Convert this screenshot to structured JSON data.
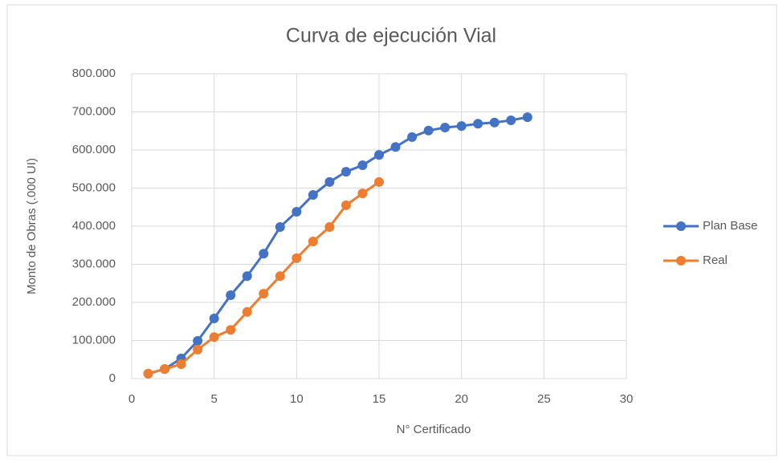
{
  "chart_data": {
    "type": "line",
    "title": "Curva de ejecución Vial",
    "x_label": "N° Certificado",
    "y_label": "Monto de Obras (.000 UI)",
    "xlim": [
      0,
      30
    ],
    "xticks": [
      0,
      5,
      10,
      15,
      20,
      25,
      30
    ],
    "ylim": [
      0,
      800000
    ],
    "yticks": [
      0,
      {
        "value": 100000,
        "label": "100.000"
      },
      {
        "value": 200000,
        "label": "200.000"
      },
      {
        "value": 300000,
        "label": "300.000"
      },
      {
        "value": 400000,
        "label": "400.000"
      },
      {
        "value": 500000,
        "label": "500.000"
      },
      {
        "value": 600000,
        "label": "600.000"
      },
      {
        "value": 700000,
        "label": "700.000"
      },
      {
        "value": 800000,
        "label": "800.000"
      }
    ],
    "grid": true,
    "legend": "right",
    "series": [
      {
        "name": "Plan Base",
        "color": "#4472c4",
        "x": [
          1,
          2,
          3,
          4,
          5,
          6,
          7,
          8,
          9,
          10,
          11,
          12,
          13,
          14,
          15,
          16,
          17,
          18,
          19,
          20,
          21,
          22,
          23,
          24
        ],
        "values": [
          13000,
          25000,
          53000,
          99000,
          158000,
          219000,
          269000,
          328000,
          398000,
          438000,
          482000,
          516000,
          543000,
          560000,
          587000,
          608000,
          634000,
          651000,
          659000,
          663000,
          669000,
          672000,
          678000,
          686000
        ]
      },
      {
        "name": "Real",
        "color": "#ed7d31",
        "x": [
          1,
          2,
          3,
          4,
          5,
          6,
          7,
          8,
          9,
          10,
          11,
          12,
          13,
          14,
          15
        ],
        "values": [
          13000,
          25000,
          38000,
          76000,
          109000,
          128000,
          175000,
          223000,
          269000,
          316000,
          360000,
          398000,
          455000,
          486000,
          516000
        ]
      }
    ]
  }
}
